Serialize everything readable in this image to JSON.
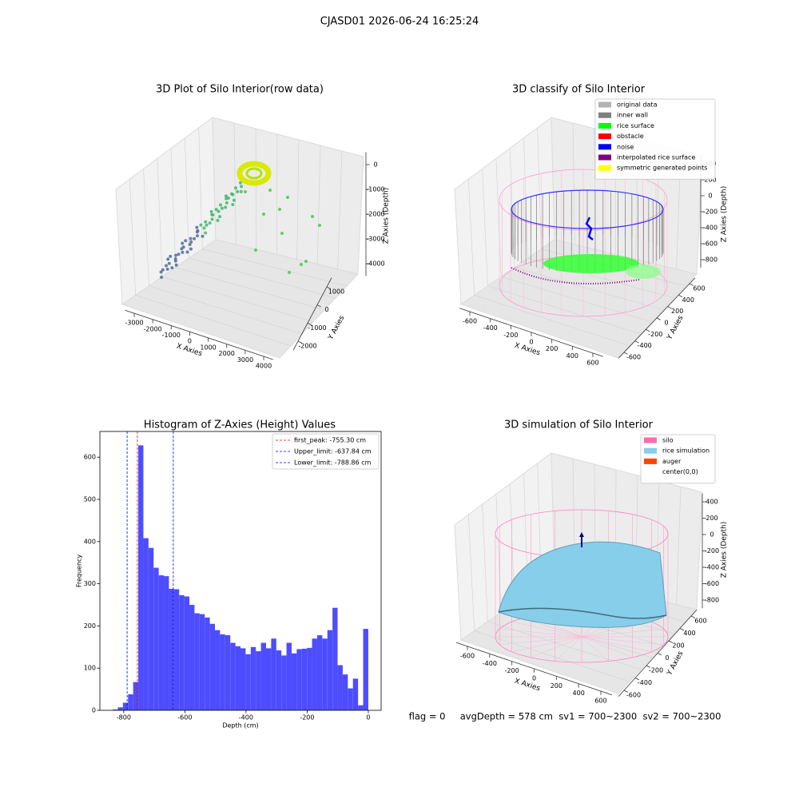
{
  "title": "CJASD01 2026-06-24 16:25:24",
  "footer": "flag = 0     avgDepth = 578 cm  sv1 = 700~2300  sv2 = 700~2300",
  "chart_data": [
    {
      "type": "scatter3d",
      "title": "3D Plot of Silo Interior(row data)",
      "xlabel": "X Axies",
      "ylabel": "Y Axies",
      "zlabel": "Z Axies (Depth)",
      "xlim": [
        -3500,
        4500
      ],
      "xticks": [
        -3000,
        -2000,
        -1000,
        0,
        1000,
        2000,
        3000,
        4000
      ],
      "ylim": [
        -2500,
        1500
      ],
      "yticks": [
        -2000,
        -1000,
        0,
        1000
      ],
      "zlim": [
        -4500,
        500
      ],
      "zticks": [
        -4000,
        -3000,
        -2000,
        -1000,
        0
      ]
    },
    {
      "type": "scatter3d",
      "title": "3D classify of Silo Interior",
      "xlabel": "X Axies",
      "ylabel": "Y Axies",
      "zlabel": "Z Axies (Depth)",
      "xlim": [
        -700,
        700
      ],
      "xticks": [
        -600,
        -400,
        -200,
        0,
        200,
        400,
        600
      ],
      "ylim": [
        -700,
        700
      ],
      "yticks": [
        -600,
        -400,
        -200,
        0,
        200,
        400,
        600
      ],
      "zlim": [
        -900,
        500
      ],
      "zticks": [
        -800,
        -600,
        -400,
        -200,
        0,
        200,
        400
      ],
      "series": [
        {
          "name": "original data",
          "color": "#b3b3b3"
        },
        {
          "name": "inner wall",
          "color": "#808080"
        },
        {
          "name": "rice surface",
          "color": "#00ff00"
        },
        {
          "name": "obstacle",
          "color": "#ff0000"
        },
        {
          "name": "noise",
          "color": "#0000ff"
        },
        {
          "name": "interpolated rice surface",
          "color": "#800080"
        },
        {
          "name": "symmetric generated points",
          "color": "#ffff00"
        }
      ]
    },
    {
      "type": "histogram",
      "title": "Histogram of Z-Axies (Height) Values",
      "xlabel": "Depth (cm)",
      "ylabel": "Frequency",
      "color": "#4d4dff",
      "bins": [
        -836.0,
        -819.28,
        -802.56,
        -785.84,
        -769.12,
        -752.4,
        -735.68,
        -718.96,
        -702.24,
        -685.52,
        -668.8,
        -652.08,
        -635.36,
        -618.64,
        -601.92,
        -585.2,
        -568.48,
        -551.76,
        -535.04,
        -518.32,
        -501.6,
        -484.88,
        -468.16,
        -451.44,
        -434.72,
        -418.0,
        -401.28,
        -384.56,
        -367.84,
        -351.12,
        -334.4,
        -317.68,
        -300.96,
        -284.24,
        -267.52,
        -250.8,
        -234.08,
        -217.36,
        -200.64,
        -183.92,
        -167.2,
        -150.48,
        -133.76,
        -117.04,
        -100.32,
        -83.6,
        -66.88,
        -50.16,
        -33.44,
        -16.72,
        0
      ],
      "values": [
        2,
        7,
        18,
        38,
        67,
        628,
        408,
        385,
        338,
        320,
        318,
        288,
        287,
        273,
        270,
        250,
        230,
        228,
        220,
        205,
        190,
        180,
        178,
        160,
        152,
        147,
        133,
        150,
        140,
        160,
        147,
        170,
        142,
        130,
        160,
        135,
        145,
        146,
        148,
        170,
        178,
        170,
        190,
        243,
        107,
        85,
        52,
        75,
        12,
        193
      ],
      "xlim": [
        -878,
        42
      ],
      "xticks": [
        -800,
        -600,
        -400,
        -200,
        0
      ],
      "ylim": [
        0,
        661
      ],
      "yticks": [
        0,
        100,
        200,
        300,
        400,
        500,
        600
      ],
      "vlines": [
        {
          "label": "first_peak: -755.30 cm",
          "value": -755.3,
          "color": "#ff0000"
        },
        {
          "label": "Upper_limit: -637.84 cm",
          "value": -637.84,
          "color": "#0000ff"
        },
        {
          "label": "Lower_limit: -788.86 cm",
          "value": -788.86,
          "color": "#0000ff"
        }
      ]
    },
    {
      "type": "surface3d",
      "title": "3D simulation of Silo Interior",
      "xlabel": "X Axies",
      "ylabel": "Y Axies",
      "zlabel": "Z Axies (Depth)",
      "xlim": [
        -700,
        700
      ],
      "xticks": [
        -600,
        -400,
        -200,
        0,
        200,
        400,
        600
      ],
      "ylim": [
        -700,
        700
      ],
      "yticks": [
        -600,
        -400,
        -200,
        0,
        200,
        400,
        600
      ],
      "zlim": [
        -900,
        500
      ],
      "zticks": [
        -800,
        -600,
        -400,
        -200,
        0,
        200,
        400
      ],
      "series": [
        {
          "name": "silo",
          "color": "#ff69b4"
        },
        {
          "name": "rice simulation",
          "color": "#87ceeb"
        },
        {
          "name": "auger",
          "color": "#ff4500"
        },
        {
          "name": "center(0,0)",
          "color": "#ffffff"
        }
      ]
    }
  ]
}
